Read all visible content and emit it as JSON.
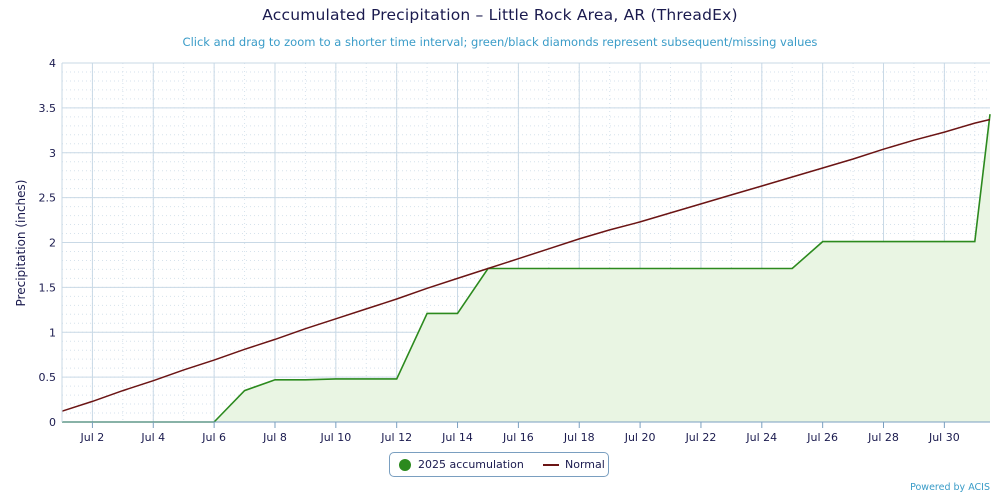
{
  "title": "Accumulated Precipitation – Little Rock Area, AR (ThreadEx)",
  "subtitle": "Click and drag to zoom to a shorter time interval; green/black diamonds represent subsequent/missing values",
  "credit": "Powered by ACIS",
  "colors": {
    "accumulation": "#2c8a1e",
    "accumulation_fill": "#e9f5e3",
    "normal": "#6b1414",
    "grid": "#c9d9e6"
  },
  "chart_data": {
    "type": "area",
    "ylabel": "Precipitation (inches)",
    "ylim": [
      0,
      4
    ],
    "yticks": [
      0,
      0.5,
      1,
      1.5,
      2,
      2.5,
      3,
      3.5,
      4
    ],
    "ytick_labels": [
      "0",
      "0.5",
      "1",
      "1.5",
      "2",
      "2.5",
      "3",
      "3.5",
      "4"
    ],
    "xlim": [
      1,
      31.5
    ],
    "xticks": [
      2,
      4,
      6,
      8,
      10,
      12,
      14,
      16,
      18,
      20,
      22,
      24,
      26,
      28,
      30
    ],
    "xtick_labels": [
      "Jul 2",
      "Jul 4",
      "Jul 6",
      "Jul 8",
      "Jul 10",
      "Jul 12",
      "Jul 14",
      "Jul 16",
      "Jul 18",
      "Jul 20",
      "Jul 22",
      "Jul 24",
      "Jul 26",
      "Jul 28",
      "Jul 30"
    ],
    "grid": true,
    "legend_position": "bottom-center",
    "series": [
      {
        "name": "2025 accumulation",
        "x": [
          1,
          2,
          3,
          4,
          5,
          6,
          7,
          8,
          9,
          10,
          11,
          12,
          13,
          14,
          15,
          16,
          17,
          18,
          19,
          20,
          21,
          22,
          23,
          24,
          25,
          26,
          27,
          28,
          29,
          30,
          31,
          31.5
        ],
        "values": [
          0,
          0,
          0,
          0,
          0,
          0,
          0.35,
          0.47,
          0.47,
          0.48,
          0.48,
          0.48,
          1.21,
          1.21,
          1.71,
          1.71,
          1.71,
          1.71,
          1.71,
          1.71,
          1.71,
          1.71,
          1.71,
          1.71,
          1.71,
          2.01,
          2.01,
          2.01,
          2.01,
          2.01,
          2.01,
          3.43
        ]
      },
      {
        "name": "Normal",
        "x": [
          1,
          2,
          3,
          4,
          5,
          6,
          7,
          8,
          9,
          10,
          11,
          12,
          13,
          14,
          15,
          16,
          17,
          18,
          19,
          20,
          21,
          22,
          23,
          24,
          25,
          26,
          27,
          28,
          29,
          30,
          31,
          31.5
        ],
        "values": [
          0.12,
          0.23,
          0.35,
          0.46,
          0.58,
          0.69,
          0.81,
          0.92,
          1.04,
          1.15,
          1.26,
          1.37,
          1.49,
          1.6,
          1.71,
          1.82,
          1.93,
          2.04,
          2.14,
          2.23,
          2.33,
          2.43,
          2.53,
          2.63,
          2.73,
          2.83,
          2.93,
          3.04,
          3.14,
          3.23,
          3.33,
          3.37
        ]
      }
    ]
  }
}
